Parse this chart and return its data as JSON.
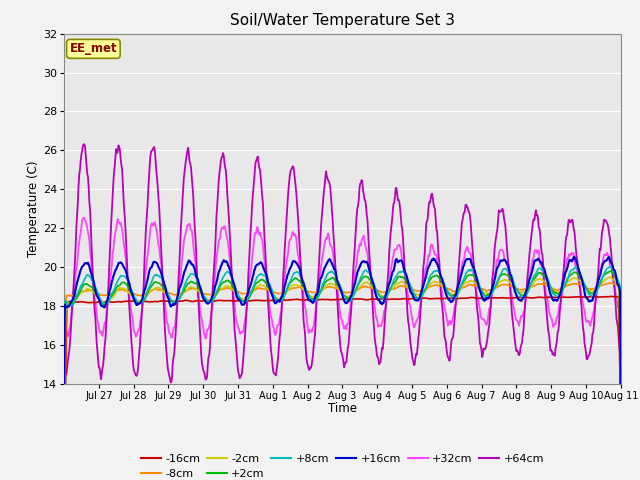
{
  "title": "Soil/Water Temperature Set 3",
  "xlabel": "Time",
  "ylabel": "Temperature (C)",
  "ylim": [
    14,
    32
  ],
  "yticks": [
    14,
    16,
    18,
    20,
    22,
    24,
    26,
    28,
    30,
    32
  ],
  "annotation": "EE_met",
  "series_colors": {
    "-16cm": "#cc0000",
    "-8cm": "#ff8800",
    "-2cm": "#cccc00",
    "+2cm": "#00bb00",
    "+8cm": "#00bbbb",
    "+16cm": "#0000cc",
    "+32cm": "#ff44ff",
    "+64cm": "#bb00bb"
  },
  "x_ticks_labels": [
    "Jul 27",
    "Jul 28",
    "Jul 29",
    "Jul 30",
    "Jul 31",
    "Aug 1",
    "Aug 2",
    "Aug 3",
    "Aug 4",
    "Aug 5",
    "Aug 6",
    "Aug 7",
    "Aug 8",
    "Aug 9",
    "Aug 10",
    "Aug 11"
  ],
  "n_days": 16,
  "pts_per_day": 48
}
